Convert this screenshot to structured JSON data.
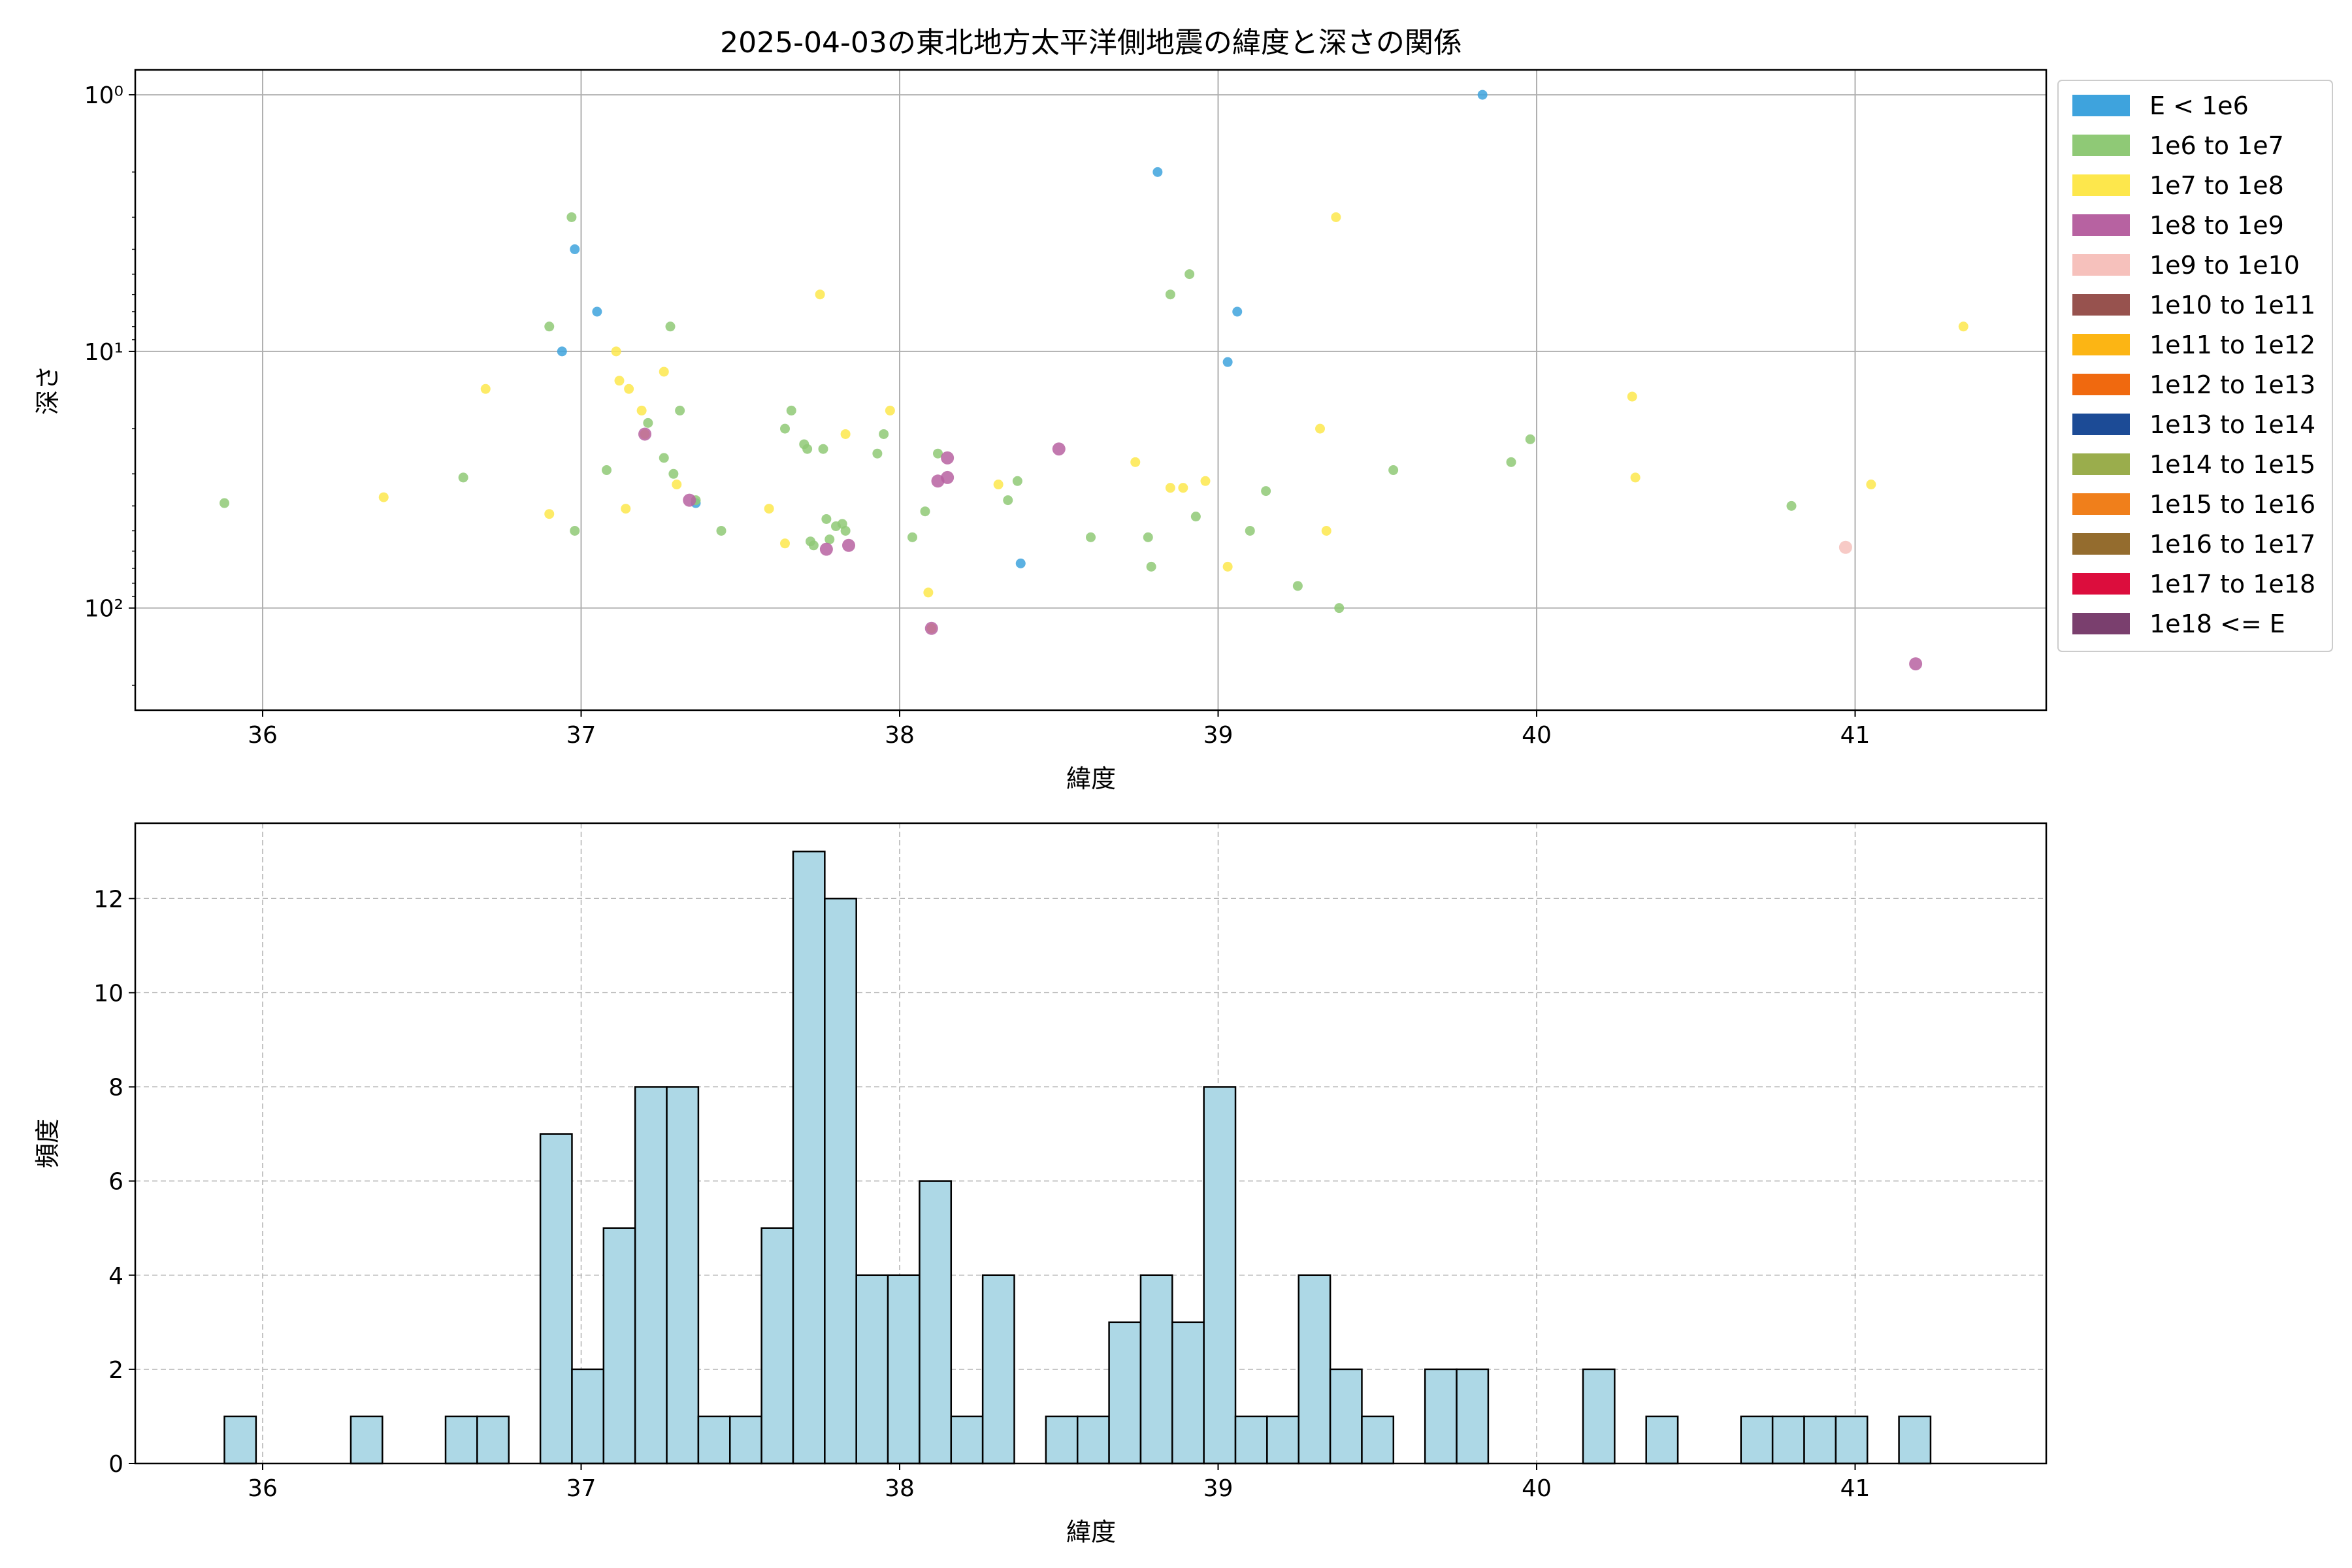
{
  "chart_data": [
    {
      "type": "scatter",
      "title": "2025-04-03の東北地方太平洋側地震の緯度と深さの関係",
      "xlabel": "緯度",
      "ylabel": "深さ",
      "xlim": [
        35.6,
        41.6
      ],
      "ylim": [
        250,
        0.8
      ],
      "yscale": "log",
      "y_inverted": true,
      "grid": true,
      "x_ticks": [
        "36",
        "37",
        "38",
        "39",
        "40",
        "41"
      ],
      "y_ticks": [
        "10⁰",
        "10¹",
        "10²"
      ],
      "y_tick_values": [
        1,
        10,
        100
      ],
      "legend": {
        "placement": "outside-right-top"
      },
      "series": [
        {
          "name": "E < 1e6",
          "color": "#3ea3dd",
          "points": [
            [
              36.94,
              10
            ],
            [
              36.98,
              4
            ],
            [
              37.05,
              7
            ],
            [
              37.36,
              39
            ],
            [
              38.38,
              67
            ],
            [
              38.81,
              2
            ],
            [
              39.03,
              11
            ],
            [
              39.06,
              7
            ],
            [
              39.83,
              1
            ]
          ]
        },
        {
          "name": "1e6 to 1e7",
          "color": "#8fc976",
          "points": [
            [
              35.88,
              39
            ],
            [
              36.63,
              31
            ],
            [
              36.9,
              8
            ],
            [
              36.97,
              3
            ],
            [
              36.98,
              50
            ],
            [
              37.08,
              29
            ],
            [
              37.21,
              19
            ],
            [
              37.26,
              26
            ],
            [
              37.28,
              8
            ],
            [
              37.29,
              30
            ],
            [
              37.31,
              17
            ],
            [
              37.36,
              38
            ],
            [
              37.44,
              50
            ],
            [
              37.64,
              20
            ],
            [
              37.66,
              17
            ],
            [
              37.7,
              23
            ],
            [
              37.71,
              24
            ],
            [
              37.72,
              55
            ],
            [
              37.73,
              57
            ],
            [
              37.76,
              24
            ],
            [
              37.77,
              45
            ],
            [
              37.78,
              54
            ],
            [
              37.8,
              48
            ],
            [
              37.82,
              47
            ],
            [
              37.83,
              50
            ],
            [
              37.93,
              25
            ],
            [
              37.95,
              21
            ],
            [
              38.04,
              53
            ],
            [
              38.08,
              42
            ],
            [
              38.12,
              25
            ],
            [
              38.34,
              38
            ],
            [
              38.37,
              32
            ],
            [
              38.6,
              53
            ],
            [
              38.78,
              53
            ],
            [
              38.79,
              69
            ],
            [
              38.85,
              6
            ],
            [
              38.91,
              5
            ],
            [
              38.93,
              44
            ],
            [
              39.1,
              50
            ],
            [
              39.15,
              35
            ],
            [
              39.25,
              82
            ],
            [
              39.38,
              100
            ],
            [
              39.55,
              29
            ],
            [
              39.92,
              27
            ],
            [
              39.98,
              22
            ],
            [
              40.8,
              40
            ]
          ]
        },
        {
          "name": "1e7 to 1e8",
          "color": "#fde74c",
          "points": [
            [
              36.38,
              37
            ],
            [
              36.7,
              14
            ],
            [
              36.9,
              43
            ],
            [
              37.11,
              10
            ],
            [
              37.12,
              13
            ],
            [
              37.14,
              41
            ],
            [
              37.15,
              14
            ],
            [
              37.19,
              17
            ],
            [
              37.2,
              21
            ],
            [
              37.26,
              12
            ],
            [
              37.3,
              33
            ],
            [
              37.59,
              41
            ],
            [
              37.64,
              56
            ],
            [
              37.75,
              6
            ],
            [
              37.83,
              21
            ],
            [
              37.97,
              17
            ],
            [
              38.09,
              87
            ],
            [
              38.1,
              120
            ],
            [
              38.31,
              33
            ],
            [
              38.74,
              27
            ],
            [
              38.85,
              34
            ],
            [
              38.89,
              34
            ],
            [
              38.96,
              32
            ],
            [
              39.03,
              69
            ],
            [
              39.32,
              20
            ],
            [
              39.34,
              50
            ],
            [
              39.37,
              3
            ],
            [
              40.3,
              15
            ],
            [
              40.31,
              31
            ],
            [
              41.05,
              33
            ],
            [
              41.34,
              8
            ]
          ]
        },
        {
          "name": "1e8 to 1e9",
          "color": "#b762a1",
          "points": [
            [
              37.2,
              21
            ],
            [
              37.34,
              38
            ],
            [
              37.77,
              59
            ],
            [
              37.84,
              57
            ],
            [
              38.12,
              32
            ],
            [
              38.15,
              26
            ],
            [
              38.15,
              31
            ],
            [
              38.5,
              24
            ],
            [
              38.1,
              120
            ],
            [
              41.19,
              165
            ]
          ]
        },
        {
          "name": "1e9 to 1e10",
          "color": "#f6c1bc",
          "points": [
            [
              40.97,
              58
            ]
          ]
        },
        {
          "name": "1e10 to 1e11",
          "color": "#97524e",
          "points": []
        },
        {
          "name": "1e11 to 1e12",
          "color": "#fcb514",
          "points": []
        },
        {
          "name": "1e12 to 1e13",
          "color": "#f0690f",
          "points": []
        },
        {
          "name": "1e13 to 1e14",
          "color": "#1c4b96",
          "points": []
        },
        {
          "name": "1e14 to 1e15",
          "color": "#9aad4c",
          "points": []
        },
        {
          "name": "1e15 to 1e16",
          "color": "#f07f1b",
          "points": []
        },
        {
          "name": "1e16 to 1e17",
          "color": "#946c2e",
          "points": []
        },
        {
          "name": "1e17 to 1e18",
          "color": "#dc0d3d",
          "points": []
        },
        {
          "name": "1e18 <= E",
          "color": "#7a3f6e",
          "points": []
        }
      ]
    },
    {
      "type": "bar",
      "title": "",
      "xlabel": "緯度",
      "ylabel": "頻度",
      "xlim": [
        35.6,
        41.6
      ],
      "ylim": [
        0,
        13.6
      ],
      "grid": true,
      "x_ticks": [
        "36",
        "37",
        "38",
        "39",
        "40",
        "41"
      ],
      "y_ticks": [
        "0",
        "2",
        "4",
        "6",
        "8",
        "10",
        "12"
      ],
      "bar_color": "#add8e6",
      "bin_start": 35.88,
      "bin_width": 0.0992,
      "counts": [
        1,
        0,
        0,
        0,
        1,
        0,
        0,
        1,
        1,
        0,
        7,
        2,
        5,
        8,
        8,
        1,
        1,
        5,
        13,
        12,
        4,
        4,
        6,
        1,
        4,
        0,
        1,
        1,
        3,
        4,
        3,
        8,
        1,
        1,
        4,
        2,
        1,
        0,
        2,
        2,
        0,
        0,
        0,
        2,
        0,
        1,
        0,
        0,
        1,
        1,
        1,
        1,
        0,
        1
      ]
    }
  ]
}
